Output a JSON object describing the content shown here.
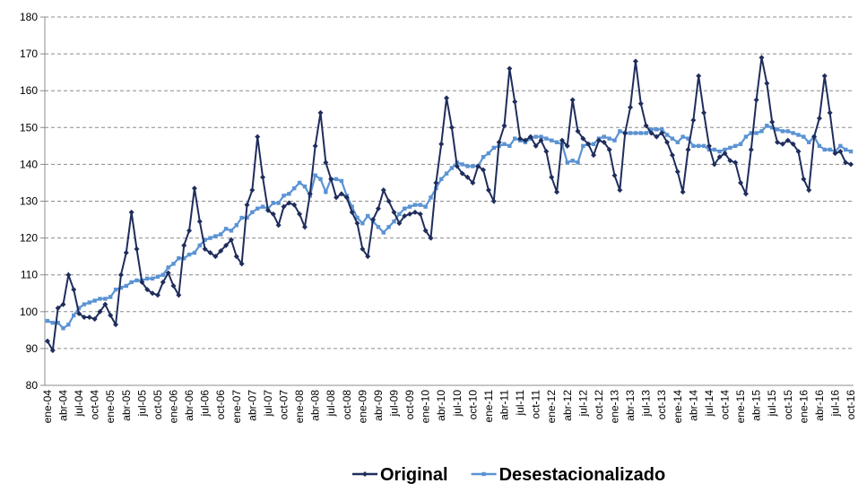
{
  "chart_data": {
    "type": "line",
    "categories": [
      "ene-04",
      null,
      null,
      "abr-04",
      null,
      null,
      "jul-04",
      null,
      null,
      "oct-04",
      null,
      null,
      "ene-05",
      null,
      null,
      "abr-05",
      null,
      null,
      "jul-05",
      null,
      null,
      "oct-05",
      null,
      null,
      "ene-06",
      null,
      null,
      "abr-06",
      null,
      null,
      "jul-06",
      null,
      null,
      "oct-06",
      null,
      null,
      "ene-07",
      null,
      null,
      "abr-07",
      null,
      null,
      "jul-07",
      null,
      null,
      "oct-07",
      null,
      null,
      "ene-08",
      null,
      null,
      "abr-08",
      null,
      null,
      "jul-08",
      null,
      null,
      "oct-08",
      null,
      null,
      "ene-09",
      null,
      null,
      "abr-09",
      null,
      null,
      "jul-09",
      null,
      null,
      "oct-09",
      null,
      null,
      "ene-10",
      null,
      null,
      "abr-10",
      null,
      null,
      "jul-10",
      null,
      null,
      "oct-10",
      null,
      null,
      "ene-11",
      null,
      null,
      "abr-11",
      null,
      null,
      "jul-11",
      null,
      null,
      "oct-11",
      null,
      null,
      "ene-12",
      null,
      null,
      "abr-12",
      null,
      null,
      "jul-12",
      null,
      null,
      "oct-12",
      null,
      null,
      "ene-13",
      null,
      null,
      "abr-13",
      null,
      null,
      "jul-13",
      null,
      null,
      "oct-13",
      null,
      null,
      "ene-14",
      null,
      null,
      "abr-14",
      null,
      null,
      "jul-14",
      null,
      null,
      "oct-14",
      null,
      null,
      "ene-15",
      null,
      null,
      "abr-15",
      null,
      null,
      "jul-15",
      null,
      null,
      "oct-15",
      null,
      null,
      "ene-16",
      null,
      null,
      "abr-16",
      null,
      null,
      "jul-16",
      null,
      null,
      "oct-16"
    ],
    "series": [
      {
        "name": "Original",
        "color": "#1f2d5c",
        "marker": "diamond",
        "values": [
          92,
          89.5,
          101,
          102,
          110,
          106,
          99.5,
          98.5,
          98.5,
          98,
          100,
          102,
          99,
          96.5,
          110,
          116,
          127,
          117,
          108,
          106,
          105,
          104.5,
          108,
          110.5,
          107,
          104.5,
          118,
          122,
          133.5,
          124.5,
          117,
          116,
          115,
          116.5,
          118,
          119.5,
          115,
          113,
          129,
          133,
          147.5,
          136.5,
          127.5,
          126.5,
          123.5,
          128.5,
          129.5,
          129,
          126.5,
          123,
          132,
          145,
          154,
          140.5,
          136,
          131,
          132,
          131,
          127,
          124,
          117,
          115,
          125,
          128,
          133,
          130,
          127,
          124,
          126,
          126.5,
          127,
          126.5,
          122,
          120,
          135,
          145.5,
          158,
          150,
          139.5,
          137.5,
          136.5,
          135,
          139.5,
          138.5,
          133,
          130,
          146,
          150.5,
          166,
          157,
          147,
          146.5,
          147.5,
          145,
          146.5,
          143.5,
          136.5,
          132.5,
          146.5,
          145,
          157.5,
          149,
          147,
          145.5,
          142.5,
          146.5,
          146,
          144,
          137,
          133,
          148.5,
          155.5,
          168,
          156.5,
          150.5,
          148.5,
          147.5,
          148.5,
          146,
          142.5,
          138,
          132.5,
          144,
          152,
          164,
          154,
          145,
          140,
          142,
          143,
          141,
          140.5,
          135,
          132,
          144,
          157.5,
          169,
          162,
          151.5,
          146,
          145.5,
          146.5,
          145.5,
          143.5,
          136,
          133,
          147.5,
          152.5,
          164,
          154,
          143,
          143.5,
          140.5,
          140
        ]
      },
      {
        "name": "Desestacionalizado",
        "color": "#5b93d3",
        "marker": "square",
        "values": [
          97.5,
          97,
          97,
          95.5,
          96.5,
          99,
          101,
          102,
          102.5,
          103,
          103.5,
          103.5,
          104,
          106,
          106.5,
          107,
          108,
          108.5,
          108.5,
          109,
          109,
          109.5,
          110,
          112,
          113,
          114.5,
          114.5,
          115.5,
          116,
          118,
          119.5,
          120,
          120.5,
          121,
          122.5,
          122,
          123.5,
          125.5,
          125.5,
          127,
          128,
          128.5,
          128,
          129.5,
          129.5,
          131.5,
          132,
          133.5,
          135,
          134,
          131.5,
          137,
          136,
          132.5,
          136,
          136,
          135.5,
          131.5,
          128.5,
          125.5,
          124,
          126,
          124.5,
          123,
          121.5,
          123,
          124.5,
          126.5,
          128,
          128.5,
          129,
          129,
          128.5,
          131,
          133.5,
          136,
          137.5,
          139,
          140.5,
          140,
          139.5,
          139.5,
          139.5,
          142,
          143,
          144.5,
          145,
          145.5,
          145,
          147,
          146.5,
          146,
          147,
          147.5,
          147.5,
          147,
          146.5,
          146,
          145.5,
          140.5,
          141,
          140.5,
          145,
          145.5,
          145.5,
          147,
          147.5,
          147,
          146.5,
          149,
          148.5,
          148.5,
          148.5,
          148.5,
          148.5,
          149.5,
          149.5,
          149.5,
          148,
          147,
          146,
          147.5,
          147,
          145,
          145,
          145,
          144,
          144,
          143.5,
          144,
          144.5,
          145,
          145.5,
          147.5,
          148.5,
          148.5,
          149,
          150.5,
          150,
          149.5,
          149,
          149,
          148.5,
          148,
          147.5,
          146,
          147.5,
          145,
          144,
          144,
          143.5,
          145,
          144,
          143.5
        ]
      }
    ],
    "ylim": [
      80,
      180
    ],
    "yticks": [
      80,
      90,
      100,
      110,
      120,
      130,
      140,
      150,
      160,
      170,
      180
    ],
    "grid": true,
    "legend": "bottom"
  }
}
